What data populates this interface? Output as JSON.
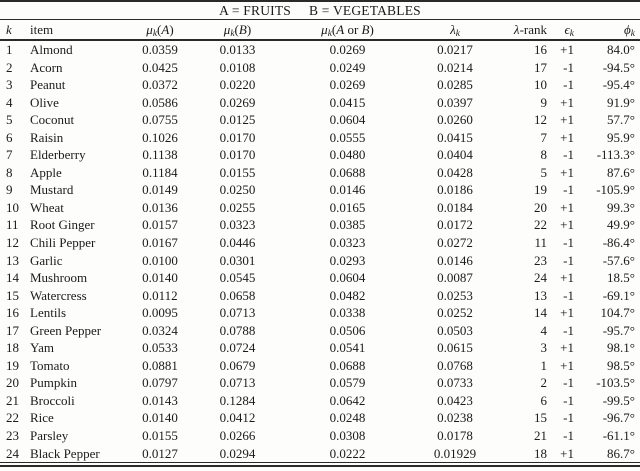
{
  "title": {
    "part_a": "A = FRUITS",
    "part_b": "B = VEGETABLES"
  },
  "colors": {
    "background": "#fdfdfc",
    "text": "#1b1b1b",
    "rule": "#2a2a2a"
  },
  "table": {
    "columns": [
      {
        "name": "k",
        "align": "left",
        "segments": [
          {
            "t": "k",
            "i": 1
          }
        ]
      },
      {
        "name": "item",
        "align": "left",
        "segments": [
          {
            "t": "item"
          }
        ]
      },
      {
        "name": "mu-a",
        "align": "center",
        "segments": [
          {
            "t": "μ",
            "i": 1
          },
          {
            "t": "k",
            "i": 1,
            "s": 1
          },
          {
            "t": "("
          },
          {
            "t": "A",
            "i": 1
          },
          {
            "t": ")"
          }
        ]
      },
      {
        "name": "mu-b",
        "align": "center",
        "segments": [
          {
            "t": "μ",
            "i": 1
          },
          {
            "t": "k",
            "i": 1,
            "s": 1
          },
          {
            "t": "("
          },
          {
            "t": "B",
            "i": 1
          },
          {
            "t": ")"
          }
        ]
      },
      {
        "name": "mu-a-or-b",
        "align": "center",
        "segments": [
          {
            "t": "μ",
            "i": 1
          },
          {
            "t": "k",
            "i": 1,
            "s": 1
          },
          {
            "t": "("
          },
          {
            "t": "A",
            "i": 1
          },
          {
            "t": " or "
          },
          {
            "t": "B",
            "i": 1
          },
          {
            "t": ")"
          }
        ]
      },
      {
        "name": "lambda",
        "align": "center",
        "segments": [
          {
            "t": "λ",
            "i": 1
          },
          {
            "t": "k",
            "i": 1,
            "s": 1
          }
        ]
      },
      {
        "name": "lambda-rank",
        "align": "right",
        "segments": [
          {
            "t": "λ",
            "i": 1
          },
          {
            "t": "-rank"
          }
        ]
      },
      {
        "name": "epsilon",
        "align": "right",
        "segments": [
          {
            "t": "ϵ",
            "i": 1
          },
          {
            "t": "k",
            "i": 1,
            "s": 1
          }
        ]
      },
      {
        "name": "phi",
        "align": "right",
        "segments": [
          {
            "t": "ϕ",
            "i": 1
          },
          {
            "t": "k",
            "i": 1,
            "s": 1
          }
        ]
      }
    ],
    "rows": [
      [
        "1",
        "Almond",
        "0.0359",
        "0.0133",
        "0.0269",
        "0.0217",
        "16",
        "+1",
        "84.0°"
      ],
      [
        "2",
        "Acorn",
        "0.0425",
        "0.0108",
        "0.0249",
        "0.0214",
        "17",
        "-1",
        "-94.5°"
      ],
      [
        "3",
        "Peanut",
        "0.0372",
        "0.0220",
        "0.0269",
        "0.0285",
        "10",
        "-1",
        "-95.4°"
      ],
      [
        "4",
        "Olive",
        "0.0586",
        "0.0269",
        "0.0415",
        "0.0397",
        "9",
        "+1",
        "91.9°"
      ],
      [
        "5",
        "Coconut",
        "0.0755",
        "0.0125",
        "0.0604",
        "0.0260",
        "12",
        "+1",
        "57.7°"
      ],
      [
        "6",
        "Raisin",
        "0.1026",
        "0.0170",
        "0.0555",
        "0.0415",
        "7",
        "+1",
        "95.9°"
      ],
      [
        "7",
        "Elderberry",
        "0.1138",
        "0.0170",
        "0.0480",
        "0.0404",
        "8",
        "-1",
        "-113.3°"
      ],
      [
        "8",
        "Apple",
        "0.1184",
        "0.0155",
        "0.0688",
        "0.0428",
        "5",
        "+1",
        "87.6°"
      ],
      [
        "9",
        "Mustard",
        "0.0149",
        "0.0250",
        "0.0146",
        "0.0186",
        "19",
        "-1",
        "-105.9°"
      ],
      [
        "10",
        "Wheat",
        "0.0136",
        "0.0255",
        "0.0165",
        "0.0184",
        "20",
        "+1",
        "99.3°"
      ],
      [
        "11",
        "Root Ginger",
        "0.0157",
        "0.0323",
        "0.0385",
        "0.0172",
        "22",
        "+1",
        "49.9°"
      ],
      [
        "12",
        "Chili Pepper",
        "0.0167",
        "0.0446",
        "0.0323",
        "0.0272",
        "11",
        "-1",
        "-86.4°"
      ],
      [
        "13",
        "Garlic",
        "0.0100",
        "0.0301",
        "0.0293",
        "0.0146",
        "23",
        "-1",
        "-57.6°"
      ],
      [
        "14",
        "Mushroom",
        "0.0140",
        "0.0545",
        "0.0604",
        "0.0087",
        "24",
        "+1",
        "18.5°"
      ],
      [
        "15",
        "Watercress",
        "0.0112",
        "0.0658",
        "0.0482",
        "0.0253",
        "13",
        "-1",
        "-69.1°"
      ],
      [
        "16",
        "Lentils",
        "0.0095",
        "0.0713",
        "0.0338",
        "0.0252",
        "14",
        "+1",
        "104.7°"
      ],
      [
        "17",
        "Green Pepper",
        "0.0324",
        "0.0788",
        "0.0506",
        "0.0503",
        "4",
        "-1",
        "-95.7°"
      ],
      [
        "18",
        "Yam",
        "0.0533",
        "0.0724",
        "0.0541",
        "0.0615",
        "3",
        "+1",
        "98.1°"
      ],
      [
        "19",
        "Tomato",
        "0.0881",
        "0.0679",
        "0.0688",
        "0.0768",
        "1",
        "+1",
        "98.5°"
      ],
      [
        "20",
        "Pumpkin",
        "0.0797",
        "0.0713",
        "0.0579",
        "0.0733",
        "2",
        "-1",
        "-103.5°"
      ],
      [
        "21",
        "Broccoli",
        "0.0143",
        "0.1284",
        "0.0642",
        "0.0423",
        "6",
        "-1",
        "-99.5°"
      ],
      [
        "22",
        "Rice",
        "0.0140",
        "0.0412",
        "0.0248",
        "0.0238",
        "15",
        "-1",
        "-96.7°"
      ],
      [
        "23",
        "Parsley",
        "0.0155",
        "0.0266",
        "0.0308",
        "0.0178",
        "21",
        "-1",
        "-61.1°"
      ],
      [
        "24",
        "Black Pepper",
        "0.0127",
        "0.0294",
        "0.0222",
        "0.01929",
        "18",
        "+1",
        "86.7°"
      ]
    ]
  }
}
